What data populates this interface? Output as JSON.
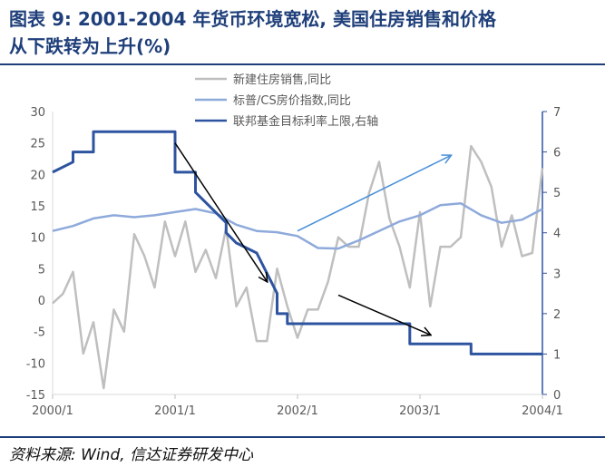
{
  "title_line1": "图表 9: 2001-2004 年货币环境宽松, 美国住房销售和价格",
  "title_line2": "从下跌转为上升(%)",
  "source": "资料来源: Wind, 信达证券研发中心",
  "colors": {
    "title": "#1f3f7a",
    "sales": "#bfbfbf",
    "cs": "#8eaadb",
    "fed": "#2e54a0",
    "arrow": "#000000",
    "arrow_blue": "#4a90d9"
  },
  "chart_data": {
    "type": "line",
    "x_ticks": [
      "2000/1",
      "2001/1",
      "2002/1",
      "2003/1",
      "2004/1"
    ],
    "x_range": [
      0,
      48
    ],
    "y_left": {
      "min": -15,
      "max": 30,
      "ticks": [
        "-15",
        "-10",
        "-5",
        "0",
        "5",
        "10",
        "15",
        "20",
        "25",
        "30"
      ]
    },
    "y_right": {
      "min": 0,
      "max": 7,
      "ticks": [
        "0",
        "1",
        "2",
        "3",
        "4",
        "5",
        "6",
        "7"
      ]
    },
    "series": [
      {
        "name": "新建住房销售,同比",
        "axis": "left",
        "color": "#bfbfbf",
        "x": [
          0,
          1,
          2,
          3,
          4,
          5,
          6,
          7,
          8,
          9,
          10,
          11,
          12,
          13,
          14,
          15,
          16,
          17,
          18,
          19,
          20,
          21,
          22,
          23,
          24,
          25,
          26,
          27,
          28,
          29,
          30,
          31,
          32,
          33,
          34,
          35,
          36,
          37,
          38,
          39,
          40,
          41,
          42,
          43,
          44,
          45,
          46,
          47,
          48
        ],
        "y": [
          -0.5,
          1,
          4.5,
          -8.5,
          -3.5,
          -14,
          -1.5,
          -5,
          10.5,
          7,
          2,
          12.5,
          7,
          12.5,
          4.5,
          8,
          3.5,
          11.5,
          -1,
          2,
          -6.5,
          -6.5,
          5,
          -1,
          -6,
          -1.5,
          -1.5,
          3,
          10,
          8.5,
          8.5,
          17,
          22,
          13,
          8.5,
          2,
          14,
          -1,
          8.5,
          8.5,
          10,
          24.5,
          22,
          18,
          8.5,
          13.5,
          7,
          7.5,
          21
        ]
      },
      {
        "name": "标普/CS房价指数,同比",
        "axis": "left",
        "color": "#8eaadb",
        "x": [
          0,
          2,
          4,
          6,
          8,
          10,
          12,
          14,
          16,
          18,
          20,
          22,
          24,
          26,
          28,
          30,
          32,
          34,
          36,
          38,
          40,
          42,
          44,
          46,
          48
        ],
        "y": [
          11,
          11.8,
          13,
          13.5,
          13.2,
          13.5,
          14,
          14.5,
          13.8,
          12,
          11,
          10.8,
          10.2,
          8.3,
          8.2,
          9.5,
          11,
          12.5,
          13.5,
          15.1,
          15.4,
          13.5,
          12.3,
          12.8,
          14.5
        ]
      },
      {
        "name": "联邦基金目标利率上限,右轴",
        "axis": "right",
        "color": "#2e54a0",
        "x": [
          0,
          2,
          2,
          4,
          4,
          5,
          5,
          12,
          12,
          14,
          14,
          17,
          17,
          18,
          18,
          20,
          20,
          22,
          22,
          23,
          23,
          35,
          35,
          41,
          41,
          48
        ],
        "y": [
          5.5,
          5.75,
          6,
          6,
          6.5,
          6.5,
          6.5,
          6.5,
          5.5,
          5.5,
          5,
          4.25,
          4,
          3.75,
          3.75,
          3.5,
          3.5,
          2.5,
          2.0,
          2.0,
          1.75,
          1.75,
          1.25,
          1.25,
          1.0,
          1.0
        ]
      }
    ],
    "annotations": [
      {
        "type": "arrow",
        "color": "#000000",
        "from": [
          12,
          25
        ],
        "to": [
          21,
          3
        ]
      },
      {
        "type": "arrow",
        "color": "#4a90d9",
        "from": [
          24,
          11
        ],
        "to": [
          39,
          23
        ]
      },
      {
        "type": "arrow",
        "color": "#000000",
        "from": [
          28,
          0.8
        ],
        "to": [
          37,
          -5.5
        ]
      }
    ]
  }
}
